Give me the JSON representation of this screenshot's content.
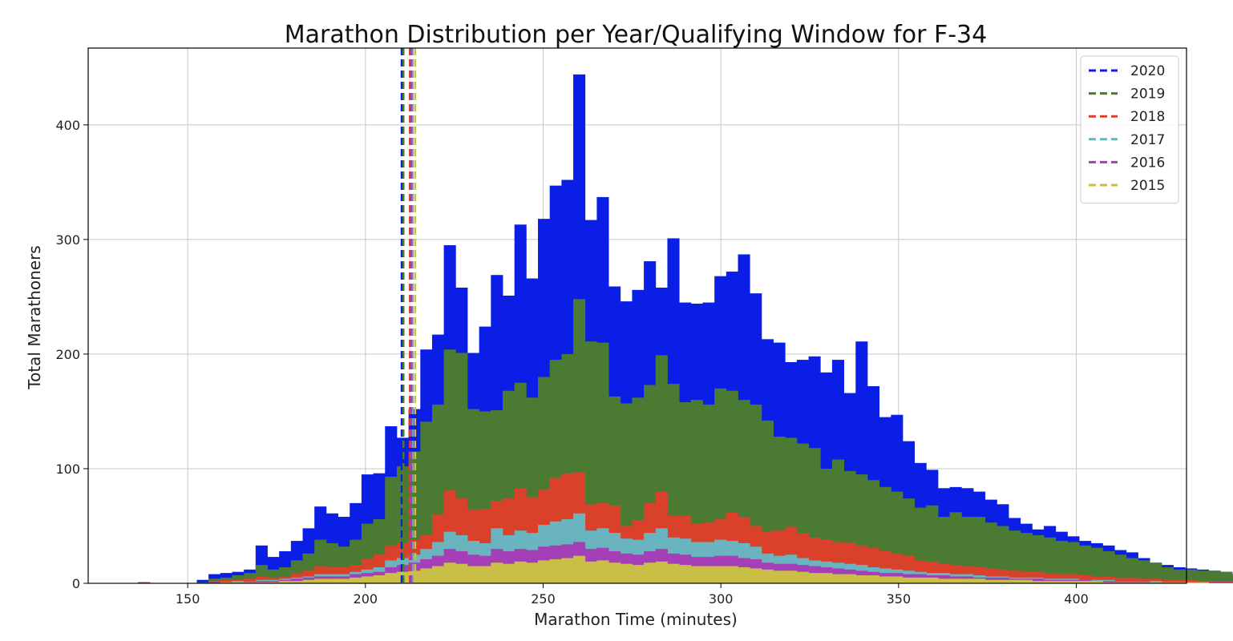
{
  "chart_data": {
    "type": "bar",
    "subtype": "stacked-histogram",
    "title": "Marathon Distribution per Year/Qualifying Window for F-34",
    "xlabel": "Marathon Time (minutes)",
    "ylabel": "Total Marathoners",
    "xlim": [
      122,
      431
    ],
    "ylim": [
      0,
      467
    ],
    "xticks": [
      150,
      200,
      250,
      300,
      350,
      400
    ],
    "yticks": [
      0,
      100,
      200,
      300,
      400
    ],
    "grid": true,
    "legend_position": "top-right",
    "bin_start": 136,
    "bin_width": 3.31,
    "series": [
      {
        "name": "2020",
        "color": "#0a1ee6",
        "values": [
          1,
          0,
          0,
          0,
          0,
          3,
          8,
          9,
          10,
          12,
          33,
          23,
          28,
          37,
          48,
          67,
          61,
          58,
          70,
          95,
          96,
          137,
          127,
          152,
          204,
          217,
          295,
          258,
          201,
          224,
          269,
          251,
          313,
          266,
          318,
          347,
          352,
          444,
          317,
          337,
          259,
          246,
          256,
          281,
          258,
          301,
          245,
          244,
          245,
          268,
          272,
          287,
          253,
          213,
          210,
          193,
          195,
          198,
          184,
          195,
          166,
          211,
          172,
          145,
          147,
          124,
          105,
          99,
          83,
          84,
          83,
          80,
          73,
          69,
          57,
          52,
          47,
          50,
          45,
          41,
          37,
          35,
          33,
          29,
          27,
          22,
          18,
          16,
          14,
          13,
          12,
          11,
          10,
          8,
          7,
          5,
          4,
          3,
          2,
          4,
          3
        ]
      },
      {
        "name": "2019",
        "color": "#4b7b32",
        "values": [
          0,
          0,
          0,
          0,
          0,
          1,
          4,
          5,
          7,
          9,
          16,
          12,
          14,
          20,
          26,
          38,
          35,
          32,
          38,
          52,
          56,
          93,
          102,
          115,
          141,
          156,
          204,
          201,
          152,
          150,
          151,
          168,
          175,
          162,
          180,
          195,
          200,
          248,
          211,
          210,
          163,
          157,
          162,
          173,
          199,
          174,
          158,
          160,
          156,
          170,
          168,
          160,
          156,
          142,
          128,
          127,
          122,
          118,
          100,
          108,
          98,
          95,
          90,
          84,
          80,
          74,
          66,
          68,
          58,
          62,
          58,
          58,
          53,
          50,
          46,
          44,
          42,
          40,
          37,
          36,
          33,
          31,
          28,
          25,
          22,
          20,
          18,
          14,
          12,
          12,
          11,
          11,
          10,
          8,
          7,
          6,
          5,
          6,
          9,
          5,
          4
        ]
      },
      {
        "name": "2018",
        "color": "#d9412b",
        "values": [
          1,
          0,
          0,
          0,
          0,
          0,
          2,
          3,
          3,
          4,
          6,
          5,
          6,
          9,
          11,
          15,
          14,
          14,
          16,
          21,
          25,
          33,
          35,
          38,
          42,
          60,
          81,
          74,
          64,
          65,
          72,
          74,
          83,
          75,
          82,
          92,
          96,
          97,
          69,
          70,
          68,
          50,
          55,
          70,
          80,
          59,
          59,
          52,
          53,
          56,
          62,
          58,
          50,
          45,
          46,
          49,
          44,
          40,
          38,
          36,
          35,
          33,
          31,
          28,
          26,
          24,
          20,
          19,
          17,
          16,
          15,
          14,
          13,
          12,
          11,
          10,
          10,
          9,
          8,
          8,
          7,
          6,
          6,
          5,
          5,
          4,
          4,
          3,
          3,
          3,
          2,
          2,
          2,
          2,
          2,
          1,
          1,
          1,
          1,
          1,
          1
        ]
      },
      {
        "name": "2017",
        "color": "#6ab4bf",
        "values": [
          0,
          0,
          0,
          0,
          0,
          0,
          1,
          1,
          2,
          2,
          3,
          3,
          4,
          5,
          6,
          8,
          8,
          8,
          10,
          12,
          14,
          20,
          22,
          25,
          30,
          36,
          45,
          42,
          37,
          35,
          48,
          42,
          46,
          44,
          51,
          54,
          56,
          61,
          46,
          48,
          44,
          39,
          38,
          44,
          48,
          40,
          39,
          36,
          36,
          38,
          37,
          35,
          32,
          26,
          24,
          25,
          22,
          20,
          19,
          18,
          17,
          16,
          14,
          13,
          12,
          11,
          10,
          9,
          9,
          8,
          8,
          7,
          6,
          6,
          5,
          5,
          5,
          4,
          4,
          4,
          3,
          3,
          3,
          2,
          2,
          2,
          2,
          1,
          1,
          1,
          1,
          1,
          1,
          1,
          1,
          1,
          0,
          0,
          0,
          0,
          0
        ]
      },
      {
        "name": "2016",
        "color": "#a53fb8",
        "values": [
          0,
          0,
          0,
          0,
          0,
          0,
          1,
          1,
          1,
          2,
          2,
          2,
          3,
          4,
          5,
          6,
          6,
          6,
          8,
          9,
          10,
          14,
          16,
          18,
          21,
          24,
          30,
          28,
          25,
          24,
          30,
          28,
          30,
          29,
          32,
          33,
          34,
          36,
          30,
          31,
          28,
          26,
          25,
          28,
          30,
          26,
          25,
          23,
          23,
          24,
          24,
          22,
          21,
          18,
          17,
          17,
          16,
          15,
          14,
          13,
          12,
          11,
          10,
          9,
          9,
          8,
          8,
          7,
          7,
          6,
          6,
          5,
          5,
          5,
          4,
          4,
          4,
          3,
          3,
          3,
          3,
          2,
          2,
          2,
          2,
          2,
          1,
          1,
          1,
          1,
          1,
          1,
          1,
          1,
          1,
          0,
          0,
          0,
          0,
          0,
          0
        ]
      },
      {
        "name": "2015",
        "color": "#c9bf46",
        "values": [
          0,
          0,
          0,
          0,
          0,
          0,
          0,
          1,
          1,
          1,
          1,
          1,
          2,
          2,
          3,
          4,
          4,
          4,
          5,
          6,
          7,
          9,
          10,
          11,
          13,
          15,
          18,
          17,
          15,
          15,
          18,
          17,
          19,
          18,
          20,
          21,
          22,
          24,
          19,
          20,
          18,
          17,
          16,
          18,
          19,
          17,
          16,
          15,
          15,
          15,
          15,
          14,
          13,
          12,
          11,
          11,
          10,
          9,
          9,
          8,
          8,
          7,
          7,
          6,
          6,
          5,
          5,
          5,
          4,
          4,
          4,
          4,
          3,
          3,
          3,
          3,
          2,
          2,
          2,
          2,
          2,
          2,
          1,
          1,
          1,
          1,
          1,
          1,
          1,
          1,
          1,
          0,
          0,
          0,
          0,
          0,
          0,
          0,
          0,
          0,
          0
        ]
      }
    ],
    "vlines": [
      {
        "name": "2020",
        "x": 210.2
      },
      {
        "name": "2019",
        "x": 210.7
      },
      {
        "name": "2018",
        "x": 212.5
      },
      {
        "name": "2017",
        "x": 213.3
      },
      {
        "name": "2016",
        "x": 212.9
      },
      {
        "name": "2015",
        "x": 214.0
      }
    ]
  }
}
